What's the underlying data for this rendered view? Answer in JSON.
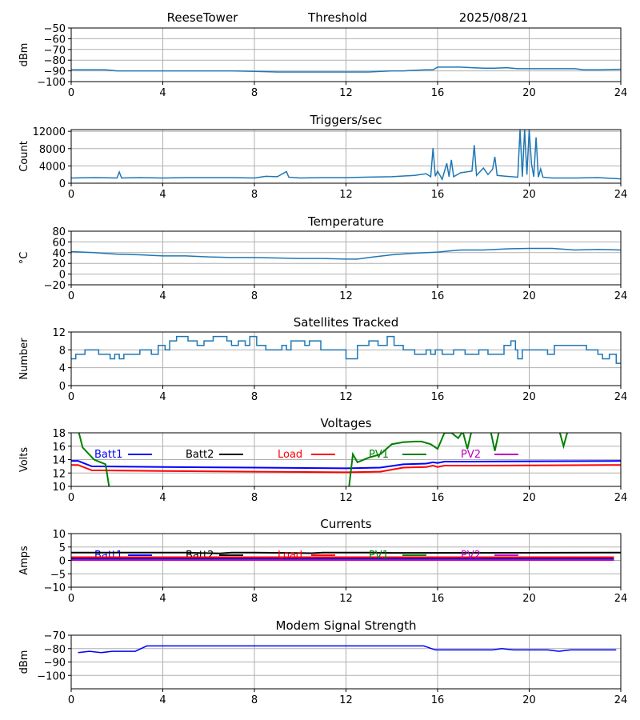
{
  "header": {
    "site": "ReeseTower",
    "mode": "Threshold",
    "date": "2025/08/21"
  },
  "colors": {
    "default": "#1f77b4",
    "batt1": "#0000ff",
    "batt2": "#000000",
    "load": "#ff0000",
    "pv1": "#008000",
    "pv2": "#bf00bf",
    "grid": "#b0b0b0"
  },
  "chart_data": [
    {
      "id": "threshold",
      "type": "line",
      "title": "",
      "ylabel": "dBm",
      "xlim": [
        0,
        24
      ],
      "ylim": [
        -100,
        -50
      ],
      "xticks": [
        0,
        4,
        8,
        12,
        16,
        20,
        24
      ],
      "yticks": [
        -50,
        -60,
        -70,
        -80,
        -90,
        -100
      ],
      "grid": true,
      "series": [
        {
          "name": "Threshold",
          "color": "#1f77b4",
          "x": [
            0,
            1,
            1.5,
            2,
            3,
            4,
            5,
            6,
            7,
            8,
            9,
            10,
            11,
            12,
            13,
            14,
            14.5,
            15,
            15.5,
            15.8,
            16,
            16.5,
            17,
            17.5,
            18,
            18.5,
            19,
            19.5,
            20,
            21,
            22,
            22.4,
            23,
            24
          ],
          "y": [
            -89,
            -89,
            -89,
            -90,
            -90,
            -90,
            -90,
            -90,
            -90,
            -90.5,
            -91,
            -91,
            -91,
            -91,
            -91,
            -90,
            -90,
            -89.5,
            -89,
            -89,
            -86.5,
            -86.5,
            -86.5,
            -87,
            -87.5,
            -87.5,
            -87,
            -88,
            -88,
            -88,
            -88,
            -89,
            -89,
            -88.5
          ]
        }
      ]
    },
    {
      "id": "triggers",
      "type": "line",
      "title": "Triggers/sec",
      "ylabel": "Count",
      "xlim": [
        0,
        24
      ],
      "ylim": [
        0,
        12400
      ],
      "xticks": [
        0,
        4,
        8,
        12,
        16,
        20,
        24
      ],
      "yticks": [
        0,
        4000,
        8000,
        12000
      ],
      "grid": true,
      "series": [
        {
          "name": "Triggers",
          "color": "#1f77b4",
          "x": [
            0,
            1,
            2,
            2.1,
            2.2,
            3,
            4,
            5,
            6,
            7,
            8,
            8.5,
            9,
            9.4,
            9.5,
            10,
            11,
            12,
            13,
            14,
            15,
            15.5,
            15.7,
            15.8,
            15.9,
            16,
            16.2,
            16.4,
            16.5,
            16.6,
            16.7,
            17,
            17.5,
            17.6,
            17.7,
            18,
            18.2,
            18.4,
            18.5,
            18.6,
            19,
            19.5,
            19.6,
            19.7,
            19.8,
            19.9,
            20,
            20.1,
            20.2,
            20.3,
            20.4,
            20.5,
            20.6,
            21,
            22,
            23,
            24
          ],
          "y": [
            1200,
            1300,
            1200,
            2600,
            1200,
            1300,
            1200,
            1300,
            1300,
            1300,
            1200,
            1600,
            1500,
            2700,
            1400,
            1200,
            1300,
            1300,
            1400,
            1500,
            1800,
            2200,
            1500,
            8100,
            1600,
            2800,
            900,
            4600,
            1500,
            5400,
            1500,
            2400,
            2800,
            8800,
            1800,
            3500,
            2000,
            3200,
            6100,
            1800,
            1600,
            1400,
            12400,
            1500,
            12400,
            2000,
            12400,
            4500,
            1500,
            10600,
            1400,
            3300,
            1400,
            1200,
            1200,
            1300,
            1000
          ]
        }
      ]
    },
    {
      "id": "temperature",
      "type": "line",
      "title": "Temperature",
      "ylabel": "°C",
      "xlim": [
        0,
        24
      ],
      "ylim": [
        -20,
        80
      ],
      "xticks": [
        0,
        4,
        8,
        12,
        16,
        20,
        24
      ],
      "yticks": [
        80,
        60,
        40,
        20,
        0,
        -20
      ],
      "grid": true,
      "series": [
        {
          "name": "Temperature",
          "color": "#1f77b4",
          "x": [
            0,
            1,
            2,
            3,
            4,
            5,
            6,
            7,
            8,
            9,
            10,
            11,
            12,
            12.5,
            13,
            14,
            15,
            16,
            16.5,
            17,
            18,
            19,
            20,
            21,
            22,
            23,
            24
          ],
          "y": [
            42,
            40,
            37,
            36,
            34,
            34,
            32,
            31,
            31,
            30,
            29,
            29,
            28,
            28,
            31,
            36,
            39,
            41,
            43,
            45,
            45,
            47,
            48,
            48,
            45,
            46,
            45
          ]
        }
      ]
    },
    {
      "id": "satellites",
      "type": "step",
      "title": "Satellites Tracked",
      "ylabel": "Number",
      "xlim": [
        0,
        24
      ],
      "ylim": [
        0,
        12
      ],
      "xticks": [
        0,
        4,
        8,
        12,
        16,
        20,
        24
      ],
      "yticks": [
        0,
        4,
        8,
        12
      ],
      "grid": true,
      "series": [
        {
          "name": "Satellites",
          "color": "#1f77b4",
          "x": [
            0,
            0.2,
            0.6,
            1.2,
            1.7,
            1.9,
            2.1,
            2.3,
            2.6,
            3,
            3.5,
            3.8,
            4.1,
            4.3,
            4.6,
            5.1,
            5.5,
            5.8,
            6.2,
            6.8,
            7,
            7.3,
            7.6,
            7.8,
            8.1,
            8.5,
            9.2,
            9.4,
            9.6,
            10.2,
            10.4,
            10.9,
            11.5,
            12,
            12.5,
            13,
            13.4,
            13.8,
            14.1,
            14.5,
            15,
            15.5,
            15.7,
            15.9,
            16.2,
            16.7,
            17.2,
            17.8,
            18.2,
            18.9,
            19.2,
            19.4,
            19.5,
            19.7,
            20.5,
            20.8,
            21.1,
            21.8,
            22.5,
            23,
            23.2,
            23.5,
            23.8,
            24
          ],
          "y": [
            6,
            7,
            8,
            7,
            6,
            7,
            6,
            7,
            7,
            8,
            7,
            9,
            8,
            10,
            11,
            10,
            9,
            10,
            11,
            10,
            9,
            10,
            9,
            11,
            9,
            8,
            9,
            8,
            10,
            9,
            10,
            8,
            8,
            6,
            9,
            10,
            9,
            11,
            9,
            8,
            7,
            8,
            7,
            8,
            7,
            8,
            7,
            8,
            7,
            9,
            10,
            8,
            6,
            8,
            8,
            7,
            9,
            9,
            8,
            7,
            6,
            7,
            5,
            5
          ]
        }
      ]
    },
    {
      "id": "voltages",
      "type": "line",
      "title": "Voltages",
      "ylabel": "Volts",
      "xlim": [
        0,
        24
      ],
      "ylim": [
        10,
        18
      ],
      "xticks": [
        0,
        4,
        8,
        12,
        16,
        20,
        24
      ],
      "yticks": [
        10,
        12,
        14,
        16,
        18
      ],
      "grid": true,
      "legend": "top, horizontal",
      "series": [
        {
          "name": "Batt1",
          "color": "#0000ff",
          "x": [
            0,
            0.3,
            0.9,
            4,
            8,
            12,
            13.5,
            14.5,
            15.5,
            15.8,
            16,
            16.3,
            17.5,
            24
          ],
          "y": [
            13.8,
            13.8,
            13,
            12.9,
            12.8,
            12.7,
            12.8,
            13.3,
            13.4,
            13.6,
            13.5,
            13.7,
            13.7,
            13.8
          ]
        },
        {
          "name": "Batt2",
          "color": "#000000",
          "x": [],
          "y": []
        },
        {
          "name": "Load",
          "color": "#ff0000",
          "x": [
            0,
            0.3,
            0.9,
            4,
            8,
            12,
            13.5,
            14.5,
            15.5,
            15.8,
            16,
            16.3,
            17.5,
            24
          ],
          "y": [
            13.2,
            13.2,
            12.4,
            12.3,
            12.2,
            12.1,
            12.2,
            12.8,
            12.9,
            13.1,
            12.9,
            13.1,
            13.1,
            13.2
          ]
        },
        {
          "name": "PV1",
          "color": "#008000",
          "x": [
            0.3,
            0.5,
            1,
            1.5,
            1.7,
            12.1,
            12.3,
            12.5,
            13,
            13.5,
            14,
            14.5,
            15,
            15.3,
            15.7,
            16,
            16.3,
            16.6,
            16.9,
            17.1,
            17.3,
            17.5,
            18.3,
            18.5,
            18.7,
            21.3,
            21.5,
            21.7,
            24
          ],
          "y": [
            18.5,
            15.8,
            14,
            13.3,
            9,
            9,
            14.8,
            13.6,
            14.3,
            14.8,
            16.3,
            16.6,
            16.7,
            16.7,
            16.3,
            15.6,
            18,
            18,
            17.2,
            18.2,
            15.6,
            18.5,
            18.5,
            15.3,
            18.5,
            18.5,
            16,
            18.5,
            18.5
          ]
        },
        {
          "name": "PV2",
          "color": "#bf00bf",
          "x": [],
          "y": []
        }
      ]
    },
    {
      "id": "currents",
      "type": "line",
      "title": "Currents",
      "ylabel": "Amps",
      "xlim": [
        0,
        24
      ],
      "ylim": [
        -10,
        10
      ],
      "xticks": [
        0,
        4,
        8,
        12,
        16,
        20,
        24
      ],
      "yticks": [
        10,
        5,
        0,
        -5,
        -10
      ],
      "grid": true,
      "legend": "top, horizontal",
      "series": [
        {
          "name": "Batt1",
          "color": "#0000ff",
          "x": [
            0,
            23.7
          ],
          "y": [
            0.6,
            0.6
          ]
        },
        {
          "name": "Batt2",
          "color": "#000000",
          "x": [
            0,
            5,
            6.5,
            7,
            8,
            10.5,
            11,
            13,
            14,
            24
          ],
          "y": [
            2.9,
            2.9,
            2.6,
            2.9,
            2.9,
            2.7,
            2.9,
            2.9,
            2.8,
            2.9
          ]
        },
        {
          "name": "Load",
          "color": "#ff0000",
          "x": [
            0,
            23.7
          ],
          "y": [
            1.2,
            1.2
          ]
        },
        {
          "name": "PV1",
          "color": "#008000",
          "x": [
            0,
            23.7
          ],
          "y": [
            0.2,
            0.2
          ]
        },
        {
          "name": "PV2",
          "color": "#bf00bf",
          "x": [
            0,
            23.7
          ],
          "y": [
            0.1,
            0.1
          ]
        }
      ]
    },
    {
      "id": "modem",
      "type": "line",
      "title": "Modem Signal Strength",
      "ylabel": "dBm",
      "xlim": [
        0,
        24
      ],
      "ylim": [
        -110,
        -70
      ],
      "xticks": [
        0,
        4,
        8,
        12,
        16,
        20,
        24
      ],
      "yticks": [
        -70,
        -80,
        -90,
        -100
      ],
      "grid": true,
      "series": [
        {
          "name": "Modem",
          "color": "#0000ff",
          "x": [
            0.3,
            0.8,
            1.3,
            1.8,
            2.8,
            3.3,
            15.4,
            15.9,
            18.4,
            18.8,
            19.3,
            20.8,
            21.3,
            21.8,
            23.8
          ],
          "y": [
            -83,
            -82,
            -83,
            -82,
            -82,
            -78,
            -78,
            -81,
            -81,
            -80,
            -81,
            -81,
            -82,
            -81,
            -81
          ]
        }
      ]
    }
  ]
}
